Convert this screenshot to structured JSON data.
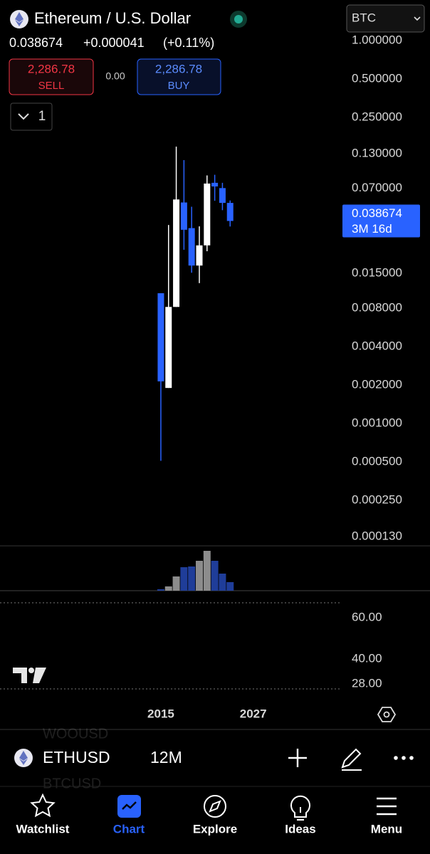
{
  "header": {
    "title": "Ethereum / U.S. Dollar",
    "quote_currency": "BTC",
    "price": "0.038674",
    "change": "+0.000041",
    "change_pct": "(+0.11%)",
    "sell_price": "2,286.78",
    "sell_label": "SELL",
    "spread": "0.00",
    "buy_price": "2,286.78",
    "buy_label": "BUY",
    "layout_toggle": "1"
  },
  "chart_data": {
    "type": "candlestick",
    "x": [
      2015,
      2016,
      2017,
      2018,
      2019,
      2020,
      2021,
      2022,
      2023,
      2024
    ],
    "open": [
      0.0105,
      0.0019,
      0.0082,
      0.054,
      0.034,
      0.0173,
      0.0249,
      0.077,
      0.07,
      0.0536
    ],
    "high": [
      0.0105,
      0.036,
      0.148,
      0.116,
      0.05,
      0.0351,
      0.088,
      0.089,
      0.077,
      0.056
    ],
    "low": [
      0.00051,
      0.0019,
      0.0082,
      0.023,
      0.0152,
      0.0126,
      0.0224,
      0.0557,
      0.047,
      0.035
    ],
    "close": [
      0.00214,
      0.0082,
      0.057,
      0.033,
      0.0173,
      0.0249,
      0.076,
      0.0721,
      0.0536,
      0.038674
    ],
    "up_color": "#ffffff",
    "down_color": "#2962ff",
    "log_scale": true,
    "xlim": [
      1994.1,
      2038.5
    ],
    "xticks": [
      2015,
      2027
    ],
    "ylim": [
      0.00011,
      1.17
    ],
    "yticks": [
      {
        "value": 1,
        "label": "1.000000"
      },
      {
        "value": 0.5,
        "label": "0.500000"
      },
      {
        "value": 0.25,
        "label": "0.250000"
      },
      {
        "value": 0.13,
        "label": "0.130000"
      },
      {
        "value": 0.07,
        "label": "0.070000"
      },
      {
        "value": 0.015,
        "label": "0.015000"
      },
      {
        "value": 0.008,
        "label": "0.008000"
      },
      {
        "value": 0.004,
        "label": "0.004000"
      },
      {
        "value": 0.002,
        "label": "0.002000"
      },
      {
        "value": 0.001,
        "label": "0.001000"
      },
      {
        "value": 0.0005,
        "label": "0.000500"
      },
      {
        "value": 0.00025,
        "label": "0.000250"
      },
      {
        "value": 0.00013,
        "label": "0.000130"
      }
    ],
    "last_price": {
      "value": 0.038674,
      "label": "0.038674"
    },
    "countdown": "3M 16d"
  },
  "volume": {
    "type": "bar",
    "values": [
      2,
      6,
      20,
      33,
      34,
      42,
      56,
      42,
      24,
      12
    ],
    "up_color": "#8c8c8c",
    "down_color": "#1f3d99",
    "ylim": [
      0,
      63
    ]
  },
  "rsi": {
    "ylim": [
      19.7,
      72.8
    ],
    "yticks": [
      {
        "value": 60,
        "label": "60.00"
      },
      {
        "value": 40,
        "label": "40.00"
      },
      {
        "value": 28,
        "label": "28.00"
      }
    ]
  },
  "toolbar": {
    "symbol": "ETHUSD",
    "interval": "12M",
    "ghost_symbols": [
      "WOOUSD",
      "BTCUSD"
    ]
  },
  "nav": {
    "items": [
      "Watchlist",
      "Chart",
      "Explore",
      "Ideas",
      "Menu"
    ],
    "active": 1
  }
}
